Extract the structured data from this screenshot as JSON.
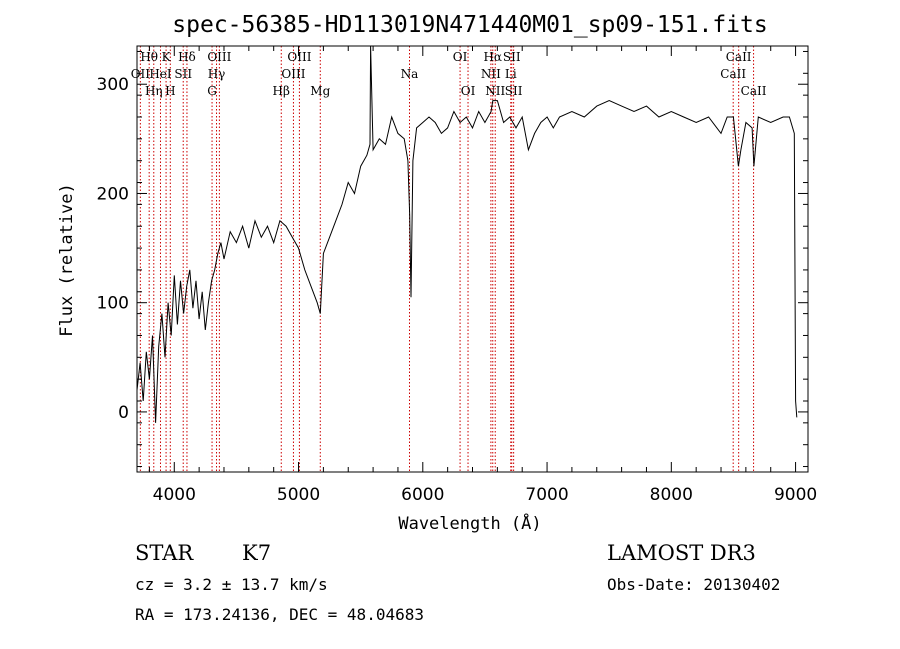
{
  "chart_data": {
    "type": "line",
    "title": "spec-56385-HD113019N471440M01_sp09-151.fits",
    "xlabel": "Wavelength (Å)",
    "ylabel": "Flux (relative)",
    "xlim": [
      3700,
      9100
    ],
    "ylim": [
      -55,
      335
    ],
    "xticks": [
      4000,
      5000,
      6000,
      7000,
      8000,
      9000
    ],
    "yticks": [
      0,
      100,
      200,
      300
    ],
    "grid": false,
    "series": [
      {
        "x": [
          3700,
          3725,
          3750,
          3775,
          3800,
          3825,
          3850,
          3875,
          3900,
          3925,
          3950,
          3975,
          4000,
          4025,
          4050,
          4075,
          4100,
          4125,
          4150,
          4175,
          4200,
          4225,
          4250,
          4275,
          4300,
          4325,
          4350,
          4375,
          4400,
          4450,
          4500,
          4550,
          4600,
          4650,
          4700,
          4750,
          4800,
          4850,
          4900,
          4950,
          5000,
          5050,
          5100,
          5150,
          5175,
          5200,
          5250,
          5300,
          5350,
          5400,
          5450,
          5500,
          5550,
          5575,
          5580,
          5600,
          5650,
          5700,
          5750,
          5800,
          5850,
          5880,
          5895,
          5905,
          5920,
          5950,
          6000,
          6050,
          6100,
          6150,
          6200,
          6250,
          6300,
          6350,
          6400,
          6450,
          6500,
          6550,
          6563,
          6600,
          6650,
          6700,
          6750,
          6800,
          6850,
          6900,
          6950,
          7000,
          7050,
          7100,
          7200,
          7300,
          7400,
          7500,
          7600,
          7700,
          7800,
          7900,
          8000,
          8100,
          8200,
          8300,
          8400,
          8450,
          8500,
          8540,
          8560,
          8600,
          8650,
          8665,
          8700,
          8800,
          8900,
          8950,
          8990,
          9000,
          9010
        ],
        "y": [
          20,
          45,
          10,
          55,
          30,
          70,
          -10,
          60,
          90,
          50,
          100,
          70,
          125,
          80,
          120,
          90,
          115,
          130,
          95,
          120,
          85,
          110,
          75,
          100,
          120,
          130,
          145,
          155,
          140,
          165,
          155,
          170,
          150,
          175,
          160,
          170,
          155,
          175,
          170,
          160,
          150,
          130,
          115,
          100,
          90,
          145,
          160,
          175,
          190,
          210,
          200,
          225,
          235,
          245,
          335,
          240,
          250,
          245,
          270,
          255,
          250,
          230,
          180,
          105,
          230,
          260,
          265,
          270,
          265,
          255,
          260,
          275,
          265,
          270,
          260,
          275,
          265,
          275,
          285,
          285,
          265,
          270,
          260,
          270,
          240,
          255,
          265,
          270,
          260,
          270,
          275,
          270,
          280,
          285,
          280,
          275,
          280,
          270,
          275,
          270,
          265,
          270,
          255,
          270,
          270,
          225,
          240,
          265,
          260,
          225,
          270,
          265,
          270,
          270,
          255,
          10,
          -5
        ]
      }
    ],
    "spectral_lines": [
      {
        "label": "Hθ",
        "wl": 3798,
        "row": 1
      },
      {
        "label": "OII",
        "wl": 3727,
        "row": 2
      },
      {
        "label": "Hη",
        "wl": 3835,
        "row": 3
      },
      {
        "label": "K",
        "wl": 3934,
        "row": 1
      },
      {
        "label": "HeI",
        "wl": 3889,
        "row": 2
      },
      {
        "label": "H",
        "wl": 3968,
        "row": 3
      },
      {
        "label": "Hδ",
        "wl": 4102,
        "row": 1
      },
      {
        "label": "SII",
        "wl": 4072,
        "row": 2
      },
      {
        "label": "OIII",
        "wl": 4363,
        "row": 1
      },
      {
        "label": "Hγ",
        "wl": 4340,
        "row": 2
      },
      {
        "label": "G",
        "wl": 4304,
        "row": 3
      },
      {
        "label": "Hβ",
        "wl": 4861,
        "row": 3
      },
      {
        "label": "OIII",
        "wl": 5007,
        "row": 1
      },
      {
        "label": "OIII",
        "wl": 4959,
        "row": 2
      },
      {
        "label": "Mg",
        "wl": 5175,
        "row": 3
      },
      {
        "label": "Na",
        "wl": 5893,
        "row": 2
      },
      {
        "label": "OI",
        "wl": 6300,
        "row": 1
      },
      {
        "label": "OI",
        "wl": 6364,
        "row": 3
      },
      {
        "label": "Hα",
        "wl": 6563,
        "row": 1
      },
      {
        "label": "NII",
        "wl": 6548,
        "row": 2
      },
      {
        "label": "NII",
        "wl": 6583,
        "row": 3
      },
      {
        "label": "SII",
        "wl": 6716,
        "row": 1
      },
      {
        "label": "Li",
        "wl": 6708,
        "row": 2
      },
      {
        "label": "SII",
        "wl": 6731,
        "row": 3
      },
      {
        "label": "CaII",
        "wl": 8542,
        "row": 1
      },
      {
        "label": "CaII",
        "wl": 8498,
        "row": 2
      },
      {
        "label": "CaII",
        "wl": 8662,
        "row": 3
      }
    ]
  },
  "info": {
    "class_label": "STAR",
    "subclass": "K7",
    "redshift": "cz = 3.2 ± 13.7 km/s",
    "coords": "RA = 173.24136, DEC =  48.04683",
    "survey": "LAMOST DR3",
    "obs_date": "Obs-Date: 20130402"
  },
  "colors": {
    "line_marker": "#cc0000",
    "spectrum": "#000000"
  }
}
